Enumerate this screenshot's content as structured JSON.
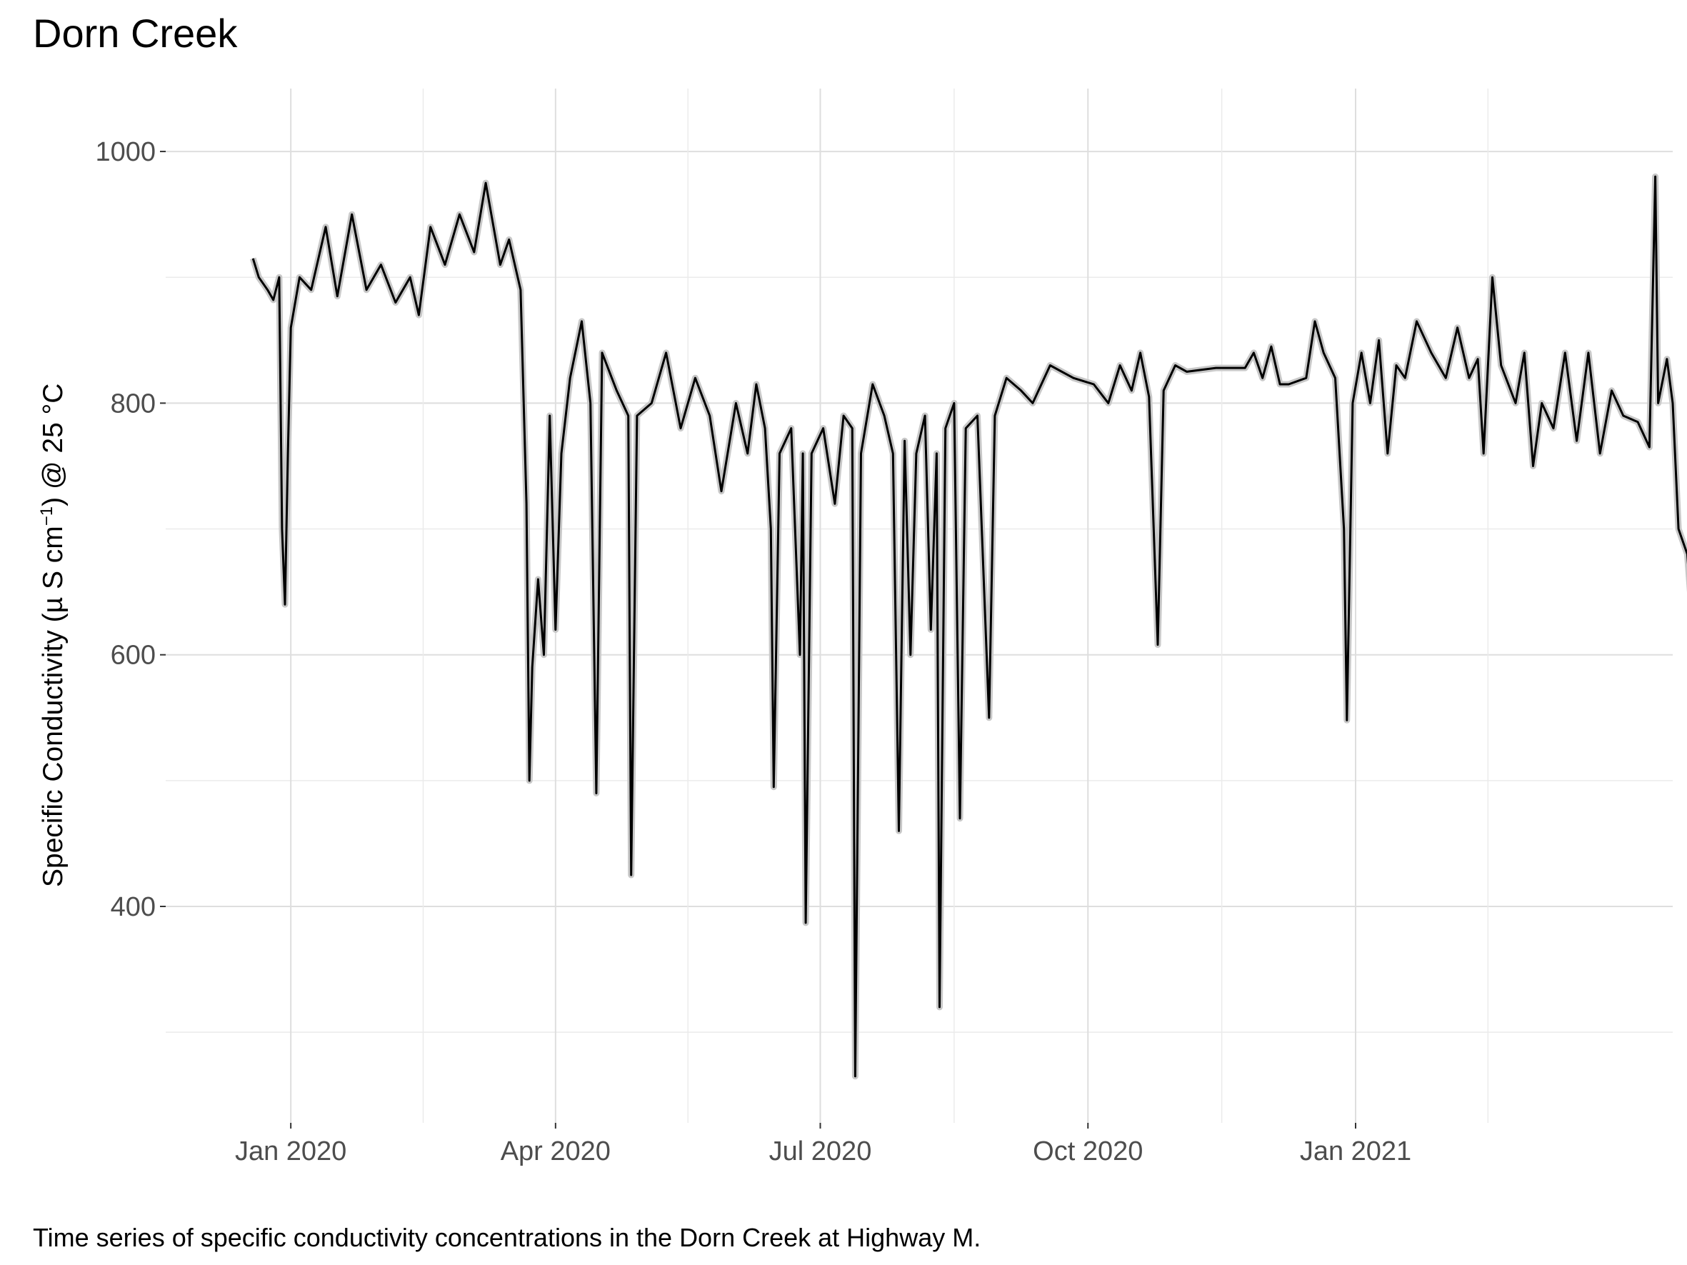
{
  "title": "Dorn Creek",
  "caption": "Time series of specific conductivity concentrations in the Dorn Creek at Highway M.",
  "chart_data": {
    "type": "line",
    "title": "Dorn Creek",
    "xlabel": "",
    "ylabel": {
      "prefix": "Specific Conductivity  (",
      "mu": "µ",
      "units": " S cm",
      "exp": "−1",
      "suffix": ") @ 25 °C"
    },
    "x_ticks": [
      {
        "label": "Jan 2020",
        "date": "2020-01-01"
      },
      {
        "label": "Apr 2020",
        "date": "2020-04-01"
      },
      {
        "label": "Jul 2020",
        "date": "2020-07-01"
      },
      {
        "label": "Oct 2020",
        "date": "2020-10-01"
      },
      {
        "label": "Jan 2021",
        "date": "2021-01-01"
      }
    ],
    "y_ticks": [
      400,
      600,
      800,
      1000
    ],
    "xlim": [
      "2019-11-19",
      "2021-04-20"
    ],
    "ylim": [
      228,
      1050
    ],
    "grid": true,
    "legend": "none",
    "series": [
      {
        "color": "#000000",
        "band_color": "#c8c8c8",
        "points": [
          [
            "2019-12-19",
            915
          ],
          [
            "2019-12-21",
            900
          ],
          [
            "2019-12-24",
            890
          ],
          [
            "2019-12-26",
            882
          ],
          [
            "2019-12-28",
            900
          ],
          [
            "2019-12-29",
            700
          ],
          [
            "2019-12-30",
            640
          ],
          [
            "2019-12-31",
            760
          ],
          [
            "2020-01-01",
            860
          ],
          [
            "2020-01-04",
            900
          ],
          [
            "2020-01-08",
            890
          ],
          [
            "2020-01-13",
            940
          ],
          [
            "2020-01-17",
            885
          ],
          [
            "2020-01-22",
            950
          ],
          [
            "2020-01-27",
            890
          ],
          [
            "2020-02-01",
            910
          ],
          [
            "2020-02-06",
            880
          ],
          [
            "2020-02-11",
            900
          ],
          [
            "2020-02-14",
            870
          ],
          [
            "2020-02-18",
            940
          ],
          [
            "2020-02-23",
            910
          ],
          [
            "2020-02-28",
            950
          ],
          [
            "2020-03-04",
            920
          ],
          [
            "2020-03-08",
            975
          ],
          [
            "2020-03-13",
            910
          ],
          [
            "2020-03-16",
            930
          ],
          [
            "2020-03-20",
            890
          ],
          [
            "2020-03-22",
            720
          ],
          [
            "2020-03-23",
            500
          ],
          [
            "2020-03-24",
            590
          ],
          [
            "2020-03-26",
            660
          ],
          [
            "2020-03-28",
            600
          ],
          [
            "2020-03-30",
            790
          ],
          [
            "2020-04-01",
            620
          ],
          [
            "2020-04-03",
            760
          ],
          [
            "2020-04-06",
            820
          ],
          [
            "2020-04-10",
            865
          ],
          [
            "2020-04-13",
            800
          ],
          [
            "2020-04-15",
            490
          ],
          [
            "2020-04-17",
            840
          ],
          [
            "2020-04-22",
            810
          ],
          [
            "2020-04-26",
            790
          ],
          [
            "2020-04-27",
            425
          ],
          [
            "2020-04-29",
            790
          ],
          [
            "2020-05-04",
            800
          ],
          [
            "2020-05-09",
            840
          ],
          [
            "2020-05-14",
            780
          ],
          [
            "2020-05-19",
            820
          ],
          [
            "2020-05-24",
            790
          ],
          [
            "2020-05-28",
            730
          ],
          [
            "2020-06-02",
            800
          ],
          [
            "2020-06-06",
            760
          ],
          [
            "2020-06-09",
            815
          ],
          [
            "2020-06-12",
            780
          ],
          [
            "2020-06-14",
            700
          ],
          [
            "2020-06-15",
            495
          ],
          [
            "2020-06-17",
            760
          ],
          [
            "2020-06-21",
            780
          ],
          [
            "2020-06-24",
            600
          ],
          [
            "2020-06-25",
            760
          ],
          [
            "2020-06-26",
            387
          ],
          [
            "2020-06-28",
            760
          ],
          [
            "2020-07-02",
            780
          ],
          [
            "2020-07-06",
            720
          ],
          [
            "2020-07-09",
            790
          ],
          [
            "2020-07-12",
            780
          ],
          [
            "2020-07-13",
            265
          ],
          [
            "2020-07-15",
            760
          ],
          [
            "2020-07-19",
            815
          ],
          [
            "2020-07-23",
            790
          ],
          [
            "2020-07-26",
            760
          ],
          [
            "2020-07-28",
            460
          ],
          [
            "2020-07-30",
            770
          ],
          [
            "2020-08-01",
            600
          ],
          [
            "2020-08-03",
            760
          ],
          [
            "2020-08-06",
            790
          ],
          [
            "2020-08-08",
            620
          ],
          [
            "2020-08-10",
            760
          ],
          [
            "2020-08-11",
            320
          ],
          [
            "2020-08-13",
            780
          ],
          [
            "2020-08-16",
            800
          ],
          [
            "2020-08-18",
            470
          ],
          [
            "2020-08-20",
            780
          ],
          [
            "2020-08-24",
            790
          ],
          [
            "2020-08-28",
            550
          ],
          [
            "2020-08-30",
            790
          ],
          [
            "2020-09-03",
            820
          ],
          [
            "2020-09-08",
            810
          ],
          [
            "2020-09-12",
            800
          ],
          [
            "2020-09-18",
            830
          ],
          [
            "2020-09-26",
            820
          ],
          [
            "2020-10-03",
            815
          ],
          [
            "2020-10-08",
            800
          ],
          [
            "2020-10-12",
            830
          ],
          [
            "2020-10-16",
            810
          ],
          [
            "2020-10-19",
            840
          ],
          [
            "2020-10-22",
            805
          ],
          [
            "2020-10-25",
            608
          ],
          [
            "2020-10-27",
            810
          ],
          [
            "2020-10-31",
            830
          ],
          [
            "2020-11-04",
            825
          ],
          [
            "2020-11-14",
            828
          ],
          [
            "2020-11-24",
            828
          ],
          [
            "2020-11-27",
            840
          ],
          [
            "2020-11-30",
            820
          ],
          [
            "2020-12-03",
            845
          ],
          [
            "2020-12-06",
            815
          ],
          [
            "2020-12-09",
            815
          ],
          [
            "2020-12-15",
            820
          ],
          [
            "2020-12-18",
            865
          ],
          [
            "2020-12-21",
            840
          ],
          [
            "2020-12-25",
            820
          ],
          [
            "2020-12-28",
            700
          ],
          [
            "2020-12-29",
            548
          ],
          [
            "2020-12-31",
            800
          ],
          [
            "2021-01-03",
            840
          ],
          [
            "2021-01-06",
            800
          ],
          [
            "2021-01-09",
            850
          ],
          [
            "2021-01-12",
            760
          ],
          [
            "2021-01-15",
            830
          ],
          [
            "2021-01-18",
            820
          ],
          [
            "2021-01-22",
            865
          ],
          [
            "2021-01-27",
            840
          ],
          [
            "2021-02-01",
            820
          ],
          [
            "2021-02-05",
            860
          ],
          [
            "2021-02-09",
            820
          ],
          [
            "2021-02-12",
            835
          ],
          [
            "2021-02-14",
            760
          ],
          [
            "2021-02-17",
            900
          ],
          [
            "2021-02-20",
            830
          ],
          [
            "2021-02-25",
            800
          ],
          [
            "2021-02-28",
            840
          ],
          [
            "2021-03-03",
            750
          ],
          [
            "2021-03-06",
            800
          ],
          [
            "2021-03-10",
            780
          ],
          [
            "2021-03-14",
            840
          ],
          [
            "2021-03-18",
            770
          ],
          [
            "2021-03-22",
            840
          ],
          [
            "2021-03-26",
            760
          ],
          [
            "2021-03-30",
            810
          ],
          [
            "2021-04-03",
            790
          ],
          [
            "2021-04-08",
            785
          ],
          [
            "2021-04-12",
            765
          ],
          [
            "2021-04-14",
            980
          ],
          [
            "2021-04-15",
            800
          ],
          [
            "2021-04-18",
            835
          ],
          [
            "2021-04-20",
            800
          ],
          [
            "2021-04-22",
            700
          ],
          [
            "2021-04-25",
            680
          ],
          [
            "2021-04-27",
            620
          ]
        ]
      }
    ]
  }
}
